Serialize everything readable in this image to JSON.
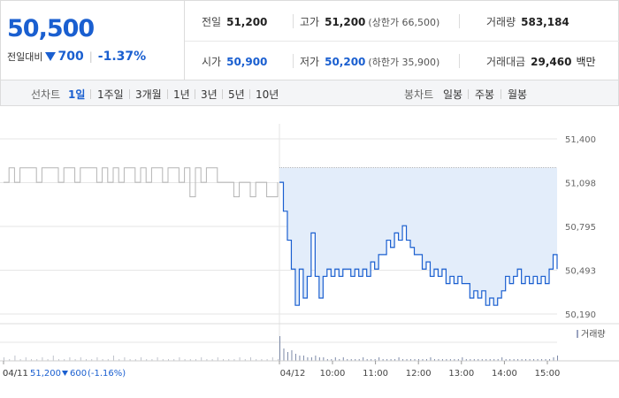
{
  "quote": {
    "price": "50,500",
    "change_label": "전일대비",
    "change_value": "700",
    "change_rate": "-1.37%",
    "stats": {
      "prev_close": {
        "label": "전일",
        "value": "51,200"
      },
      "high": {
        "label": "고가",
        "value": "51,200",
        "sub": "(상한가 66,500)"
      },
      "volume": {
        "label": "거래량",
        "value": "583,184"
      },
      "open": {
        "label": "시가",
        "value": "50,900"
      },
      "low": {
        "label": "저가",
        "value": "50,200",
        "sub": "(하한가 35,900)"
      },
      "trade_amount": {
        "label": "거래대금",
        "value": "29,460",
        "unit": "백만"
      }
    }
  },
  "period_bar": {
    "line_chart_label": "선차트",
    "line_periods": [
      "1일",
      "1주일",
      "3개월",
      "1년",
      "3년",
      "5년",
      "10년"
    ],
    "selected": "1일",
    "candle_chart_label": "봉차트",
    "candle_periods": [
      "일봉",
      "주봉",
      "월봉"
    ]
  },
  "colors": {
    "accent": "#1a5fd0",
    "prev_line": "#b4b4b4",
    "area_fill": "#e3edfa",
    "grid": "#e6e6e6",
    "volume_bar": "#7d8aa8"
  },
  "chart_data": {
    "type": "line",
    "y_ticks": [
      "51,400",
      "51,098",
      "50,795",
      "50,493",
      "50,190"
    ],
    "ylim": [
      50190,
      51400
    ],
    "x_ticks": [
      "04/11",
      "04/12",
      "10:00",
      "11:00",
      "12:00",
      "13:00",
      "14:00",
      "15:00"
    ],
    "volume_legend": "거래량",
    "prev_day_summary": {
      "date": "04/11",
      "close": "51,200",
      "change": "600",
      "rate": "(-1.16%)"
    },
    "reference_price": 51200,
    "prev_day_series": {
      "name": "04/11",
      "x": [
        0,
        1,
        2,
        3,
        4,
        5,
        6,
        7,
        8,
        9,
        10,
        11,
        12,
        13,
        14,
        15,
        16,
        17,
        18,
        19,
        20,
        21,
        22,
        23,
        24,
        25,
        26,
        27,
        28,
        29,
        30,
        31,
        32,
        33,
        34,
        35,
        36,
        37,
        38,
        39,
        40,
        41,
        42,
        43,
        44,
        45,
        46,
        47,
        48,
        49,
        50
      ],
      "values": [
        51100,
        51200,
        51100,
        51200,
        51200,
        51200,
        51100,
        51200,
        51200,
        51200,
        51100,
        51200,
        51200,
        51100,
        51200,
        51200,
        51200,
        51100,
        51200,
        51100,
        51200,
        51100,
        51200,
        51200,
        51100,
        51200,
        51100,
        51200,
        51200,
        51100,
        51200,
        51200,
        51100,
        51200,
        51000,
        51200,
        51100,
        51200,
        51200,
        51100,
        51100,
        51100,
        51000,
        51100,
        51100,
        51000,
        51100,
        51100,
        51000,
        51000,
        51100
      ]
    },
    "today_series": {
      "name": "04/12",
      "x": [
        0,
        1,
        2,
        3,
        4,
        5,
        6,
        7,
        8,
        9,
        10,
        11,
        12,
        13,
        14,
        15,
        16,
        17,
        18,
        19,
        20,
        21,
        22,
        23,
        24,
        25,
        26,
        27,
        28,
        29,
        30,
        31,
        32,
        33,
        34,
        35,
        36,
        37,
        38,
        39,
        40,
        41,
        42,
        43,
        44,
        45,
        46,
        47,
        48,
        49,
        50,
        51,
        52,
        53,
        54,
        55,
        56,
        57,
        58,
        59,
        60,
        61,
        62,
        63,
        64,
        65,
        66,
        67,
        68,
        69,
        70
      ],
      "values": [
        51100,
        50900,
        50700,
        50500,
        50250,
        50500,
        50300,
        50450,
        50750,
        50450,
        50300,
        50450,
        50500,
        50450,
        50500,
        50450,
        50500,
        50500,
        50450,
        50500,
        50450,
        50500,
        50450,
        50550,
        50500,
        50600,
        50600,
        50700,
        50650,
        50750,
        50700,
        50800,
        50700,
        50650,
        50600,
        50600,
        50500,
        50550,
        50450,
        50500,
        50450,
        50500,
        50400,
        50450,
        50400,
        50450,
        50400,
        50400,
        50300,
        50350,
        50300,
        50350,
        50250,
        50300,
        50250,
        50300,
        50350,
        50450,
        50400,
        50450,
        50500,
        50400,
        50450,
        50400,
        50450,
        50400,
        50450,
        50400,
        50500,
        50600,
        50500
      ]
    },
    "volume": {
      "prev_day": [
        2,
        1,
        3,
        1,
        2,
        1,
        1,
        2,
        1,
        3,
        1,
        1,
        2,
        1,
        2,
        1,
        1,
        2,
        1,
        1,
        3,
        1,
        2,
        1,
        1,
        2,
        1,
        1,
        2,
        1,
        1,
        1,
        2,
        1,
        1,
        1,
        2,
        1,
        1,
        2,
        1,
        1,
        1,
        2,
        1,
        2,
        1,
        1,
        1,
        2,
        1
      ],
      "today": [
        14,
        7,
        5,
        6,
        4,
        3,
        3,
        2,
        2,
        3,
        2,
        2,
        1,
        1,
        2,
        1,
        2,
        1,
        1,
        1,
        1,
        2,
        1,
        1,
        1,
        2,
        1,
        1,
        1,
        1,
        2,
        1,
        1,
        1,
        1,
        1,
        1,
        1,
        2,
        1,
        1,
        1,
        1,
        1,
        1,
        1,
        2,
        1,
        1,
        1,
        1,
        1,
        1,
        1,
        1,
        1,
        2,
        1,
        1,
        1,
        1,
        1,
        1,
        1,
        1,
        1,
        1,
        1,
        1,
        2,
        3
      ]
    }
  }
}
